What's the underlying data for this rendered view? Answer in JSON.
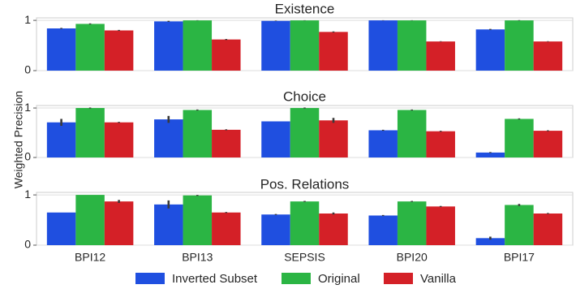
{
  "chart_data": {
    "type": "bar",
    "ylabel": "Weighted Precision",
    "categories": [
      "BPI12",
      "BPI13",
      "SEPSIS",
      "BPI20",
      "BPI17"
    ],
    "legend": {
      "placement": "bottom",
      "entries": [
        "Inverted Subset",
        "Original",
        "Vanilla"
      ]
    },
    "series_colors": {
      "Inverted Subset": "#1f4fe0",
      "Original": "#2bb544",
      "Vanilla": "#d42027"
    },
    "grid": true,
    "ylim": [
      0,
      1.05
    ],
    "yticks": [
      "0",
      "1"
    ],
    "panels": [
      {
        "title": "Existence",
        "series": [
          {
            "name": "Inverted Subset",
            "values": [
              0.84,
              0.98,
              0.99,
              1.0,
              0.82
            ],
            "err": [
              0.01,
              0.01,
              0.005,
              0.003,
              0.01
            ]
          },
          {
            "name": "Original",
            "values": [
              0.93,
              1.0,
              1.0,
              1.0,
              1.0
            ],
            "err": [
              0.01,
              0.003,
              0.003,
              0.003,
              0.005
            ]
          },
          {
            "name": "Vanilla",
            "values": [
              0.8,
              0.62,
              0.77,
              0.58,
              0.58
            ],
            "err": [
              0.01,
              0.01,
              0.01,
              0.005,
              0.005
            ]
          }
        ]
      },
      {
        "title": "Choice",
        "series": [
          {
            "name": "Inverted Subset",
            "values": [
              0.71,
              0.77,
              0.73,
              0.55,
              0.1
            ],
            "err": [
              0.07,
              0.07,
              0.0,
              0.01,
              0.01
            ]
          },
          {
            "name": "Original",
            "values": [
              1.0,
              0.96,
              1.0,
              0.96,
              0.78
            ],
            "err": [
              0.01,
              0.01,
              0.01,
              0.01,
              0.01
            ]
          },
          {
            "name": "Vanilla",
            "values": [
              0.71,
              0.56,
              0.75,
              0.53,
              0.54
            ],
            "err": [
              0.01,
              0.01,
              0.05,
              0.01,
              0.01
            ]
          }
        ]
      },
      {
        "title": "Pos. Relations",
        "series": [
          {
            "name": "Inverted Subset",
            "values": [
              0.65,
              0.81,
              0.61,
              0.59,
              0.14
            ],
            "err": [
              0.0,
              0.08,
              0.01,
              0.01,
              0.03
            ]
          },
          {
            "name": "Original",
            "values": [
              1.0,
              0.99,
              0.87,
              0.87,
              0.8
            ],
            "err": [
              0.0,
              0.01,
              0.01,
              0.01,
              0.02
            ]
          },
          {
            "name": "Vanilla",
            "values": [
              0.87,
              0.65,
              0.63,
              0.77,
              0.63
            ],
            "err": [
              0.03,
              0.01,
              0.02,
              0.01,
              0.01
            ]
          }
        ]
      }
    ]
  }
}
